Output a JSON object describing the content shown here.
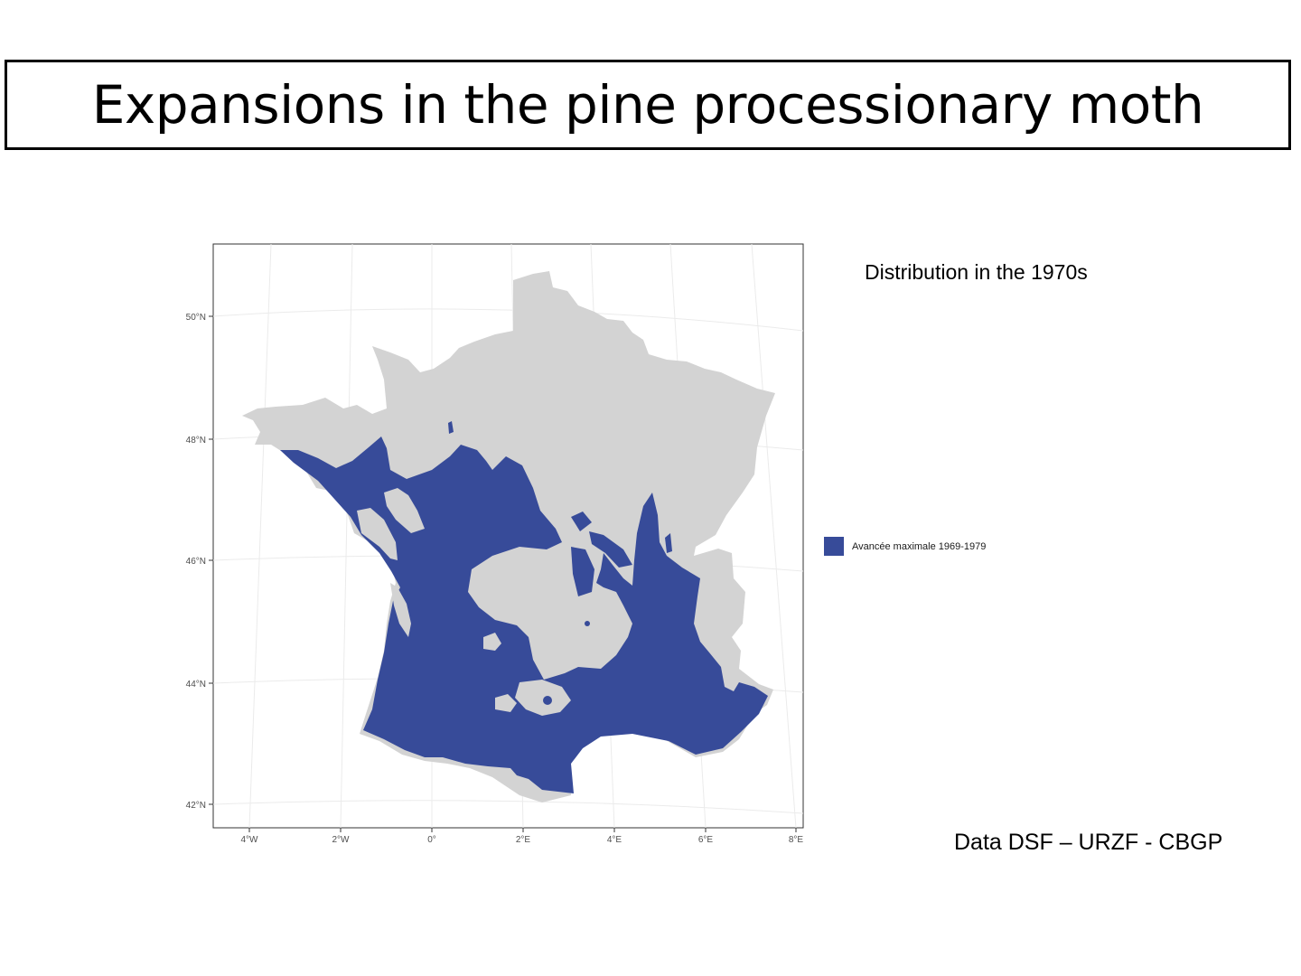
{
  "slide": {
    "title": "Expansions in the pine processionary moth"
  },
  "map": {
    "subtitle": "Distribution in the 1970s",
    "credit": "Data DSF – URZF - CBGP",
    "legend": {
      "label": "Avancée maximale 1969-1979",
      "color": "#374b99"
    },
    "land_color": "#d3d3d3",
    "grid_color": "#ebebeb",
    "lat_labels": [
      "50°N",
      "48°N",
      "46°N",
      "44°N",
      "42°N"
    ],
    "lon_labels": [
      "4°W",
      "2°W",
      "0°",
      "2°E",
      "4°E",
      "6°E",
      "8°E"
    ]
  }
}
